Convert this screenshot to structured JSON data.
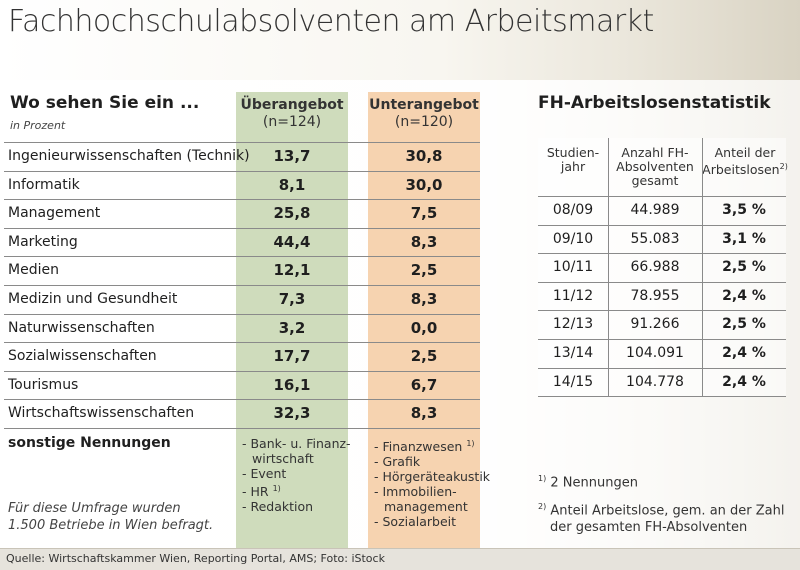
{
  "title": "Fachhochschulabsolventen am Arbeitsmarkt",
  "chart_data": [
    {
      "type": "table",
      "title": "Wo sehen Sie ein ...",
      "subtitle": "in Prozent",
      "columns": [
        {
          "name": "Überangebot",
          "n": "(n=124)"
        },
        {
          "name": "Unterangebot",
          "n": "(n=120)"
        }
      ],
      "rows": [
        {
          "label": "Ingenieurwissenschaften (Technik)",
          "ueber": "13,7",
          "unter": "30,8"
        },
        {
          "label": "Informatik",
          "ueber": "8,1",
          "unter": "30,0"
        },
        {
          "label": "Management",
          "ueber": "25,8",
          "unter": "7,5"
        },
        {
          "label": "Marketing",
          "ueber": "44,4",
          "unter": "8,3"
        },
        {
          "label": "Medien",
          "ueber": "12,1",
          "unter": "2,5"
        },
        {
          "label": "Medizin und Gesundheit",
          "ueber": "7,3",
          "unter": "8,3"
        },
        {
          "label": "Naturwissenschaften",
          "ueber": "3,2",
          "unter": "0,0"
        },
        {
          "label": "Sozialwissenschaften",
          "ueber": "17,7",
          "unter": "2,5"
        },
        {
          "label": "Tourismus",
          "ueber": "16,1",
          "unter": "6,7"
        },
        {
          "label": "Wirtschaftswissenschaften",
          "ueber": "32,3",
          "unter": "8,3"
        }
      ],
      "other": {
        "label": "sonstige Nennungen",
        "ueber": [
          "- Bank- u. Finanz-",
          "  wirtschaft",
          "- Event",
          "- HR",
          "- Redaktion"
        ],
        "ueber_hr_fn": "1)",
        "unter": [
          "- Finanzwesen",
          "- Grafik",
          "- Hörgeräteakustik",
          "- Immobilien-",
          "  management",
          "- Sozialarbeit"
        ],
        "unter_fn": "1)"
      },
      "note": [
        "Für diese Umfrage wurden",
        "1.500 Betriebe in Wien befragt."
      ]
    },
    {
      "type": "table",
      "title": "FH-Arbeitslosenstatistik",
      "headers": {
        "year": [
          "Studien-",
          "jahr"
        ],
        "count": [
          "Anzahl FH-",
          "Absolventen",
          "gesamt"
        ],
        "share": [
          "Anteil der",
          "Arbeitslosen"
        ],
        "share_fn": "2)"
      },
      "rows": [
        {
          "year": "08/09",
          "count": "44.989",
          "share": "3,5 %"
        },
        {
          "year": "09/10",
          "count": "55.083",
          "share": "3,1 %"
        },
        {
          "year": "10/11",
          "count": "66.988",
          "share": "2,5 %"
        },
        {
          "year": "11/12",
          "count": "78.955",
          "share": "2,4 %"
        },
        {
          "year": "12/13",
          "count": "91.266",
          "share": "2,5 %"
        },
        {
          "year": "13/14",
          "count": "104.091",
          "share": "2,4 %"
        },
        {
          "year": "14/15",
          "count": "104.778",
          "share": "2,4 %"
        }
      ],
      "footnotes": {
        "f1_mark": "1)",
        "f1": "2 Nennungen",
        "f2_mark": "2)",
        "f2_line1": "Anteil Arbeitslose, gem. an der Zahl",
        "f2_line2": "der gesamten FH-Absolventen"
      }
    }
  ],
  "source": "Quelle: Wirtschaftskammer Wien, Reporting Portal, AMS; Foto: iStock"
}
